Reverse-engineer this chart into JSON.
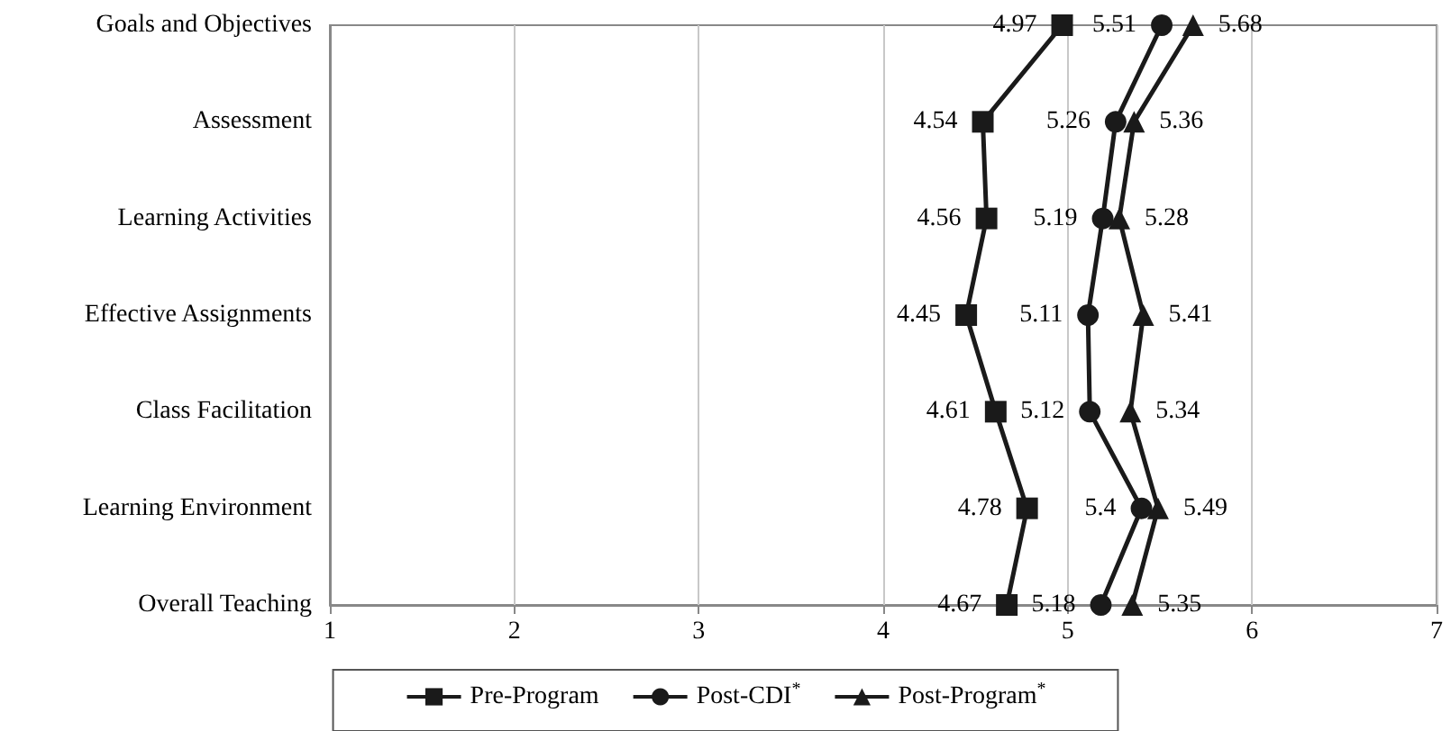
{
  "chart_data": {
    "type": "line",
    "orientation": "horizontal",
    "categories": [
      "Goals and Objectives",
      "Assessment",
      "Learning Activities",
      "Effective Assignments",
      "Class Facilitation",
      "Learning Environment",
      "Overall Teaching"
    ],
    "series": [
      {
        "name": "Pre-Program",
        "color": "#1a1a1a",
        "marker": "square",
        "values": [
          4.97,
          4.54,
          4.56,
          4.45,
          4.61,
          4.78,
          4.67
        ]
      },
      {
        "name": "Post-CDI$^{*}$",
        "color": "#1a1a1a",
        "marker": "circle",
        "values": [
          5.51,
          5.26,
          5.19,
          5.11,
          5.12,
          5.4,
          5.18
        ]
      },
      {
        "name": "Post-Program$^{*}$",
        "color": "#1a1a1a",
        "marker": "triangle",
        "values": [
          5.68,
          5.36,
          5.28,
          5.41,
          5.34,
          5.49,
          5.35
        ]
      }
    ],
    "xlim": [
      1,
      7
    ],
    "xticks": [
      1,
      2,
      3,
      4,
      5,
      6,
      7
    ],
    "grid": "x",
    "legend": "bottom",
    "data_labels": true,
    "line_style": "solid"
  }
}
